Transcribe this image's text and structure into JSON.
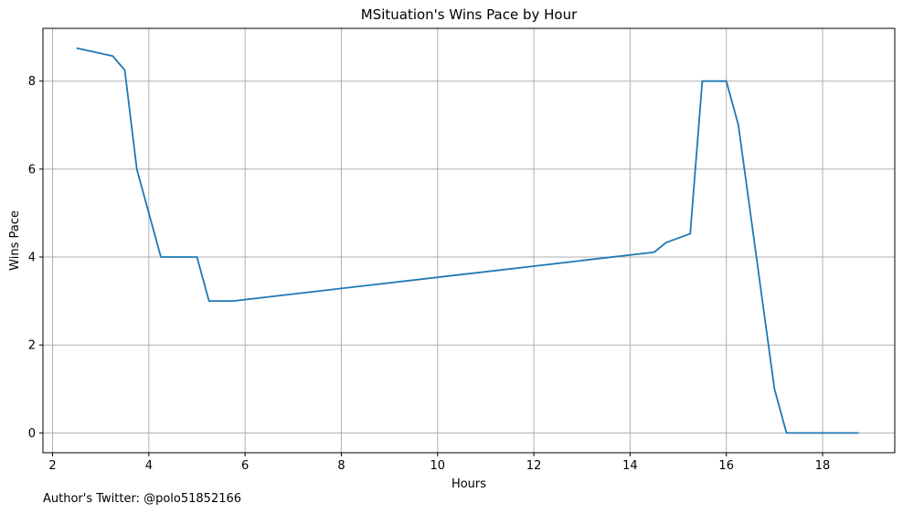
{
  "chart_data": {
    "type": "line",
    "title": "MSituation's Wins Pace by Hour",
    "xlabel": "Hours",
    "ylabel": "Wins Pace",
    "xlim": [
      1.8,
      19.5
    ],
    "ylim": [
      -0.45,
      9.2
    ],
    "xticks": [
      2,
      4,
      6,
      8,
      10,
      12,
      14,
      16,
      18
    ],
    "yticks": [
      0,
      2,
      4,
      6,
      8
    ],
    "grid": true,
    "series": [
      {
        "color": "#1f77b4",
        "x": [
          2.5,
          3.25,
          3.5,
          3.75,
          4.0,
          4.25,
          5.0,
          5.25,
          5.75,
          14.5,
          14.75,
          15.25,
          15.5,
          16.0,
          16.25,
          17.0,
          17.25,
          18.75
        ],
        "y": [
          8.75,
          8.57,
          8.25,
          6.0,
          5.0,
          4.0,
          4.0,
          3.0,
          3.0,
          4.11,
          4.33,
          4.53,
          8.0,
          8.0,
          7.0,
          1.0,
          0.0,
          0.0
        ]
      }
    ]
  },
  "footer": {
    "text": "Author's Twitter: @polo51852166"
  }
}
